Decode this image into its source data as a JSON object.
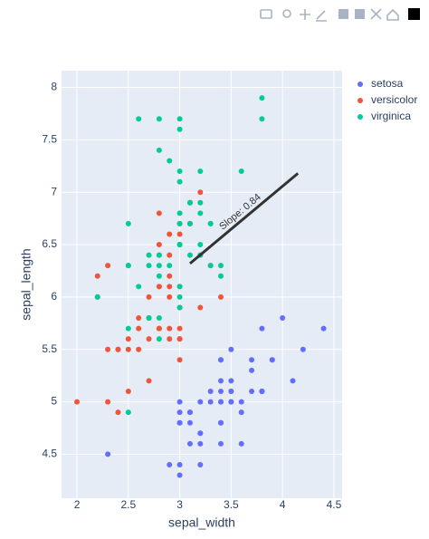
{
  "chart_data": {
    "type": "scatter",
    "x_label": "sepal_width",
    "y_label": "sepal_length",
    "xlim": [
      1.85,
      4.58
    ],
    "ylim": [
      4.08,
      8.16
    ],
    "xticks": [
      2,
      2.5,
      3,
      3.5,
      4,
      4.5
    ],
    "yticks": [
      4.5,
      5,
      5.5,
      6,
      6.5,
      7,
      7.5,
      8
    ],
    "grid": true,
    "legend": "right",
    "series": [
      {
        "name": "setosa",
        "color": "#636efa",
        "x": [
          3.5,
          3,
          3.2,
          3.1,
          3.6,
          3.9,
          3.4,
          3.4,
          2.9,
          3.1,
          3.7,
          3.4,
          3,
          3,
          4,
          4.4,
          3.9,
          3.5,
          3.8,
          3.8,
          3.4,
          3.7,
          3.6,
          3.3,
          3.4,
          3,
          3.4,
          3.5,
          3.4,
          3.2,
          3.1,
          3.4,
          4.1,
          4.2,
          3.1,
          3.2,
          3.5,
          3.6,
          3,
          3.4,
          3.5,
          2.3,
          3.2,
          3.5,
          3.8,
          3,
          3.8,
          3.2,
          3.7,
          3.3
        ],
        "values": [
          5.1,
          4.9,
          4.7,
          4.6,
          5,
          5.4,
          4.6,
          5,
          4.4,
          4.9,
          5.4,
          4.8,
          4.8,
          4.3,
          5.8,
          5.7,
          5.4,
          5.1,
          5.7,
          5.1,
          5.4,
          5.1,
          4.6,
          5.1,
          4.8,
          5,
          5,
          5.2,
          5.2,
          4.7,
          4.8,
          5.4,
          5.2,
          5.5,
          4.9,
          5,
          5.5,
          4.9,
          4.4,
          5.1,
          5,
          4.5,
          4.4,
          5,
          5.1,
          4.8,
          5.1,
          4.6,
          5.3,
          5
        ]
      },
      {
        "name": "versicolor",
        "color": "#ef553b",
        "x": [
          3.2,
          3.2,
          3.1,
          2.3,
          2.8,
          2.8,
          3.3,
          2.4,
          2.9,
          2.7,
          2,
          3,
          2.2,
          2.9,
          2.9,
          3.1,
          3,
          2.7,
          2.2,
          2.5,
          3.2,
          2.8,
          2.5,
          2.8,
          2.9,
          3,
          2.8,
          3,
          2.9,
          2.6,
          2.4,
          2.4,
          2.7,
          2.7,
          3,
          3.4,
          3.1,
          2.3,
          3,
          2.5,
          2.6,
          3,
          2.6,
          2.3,
          2.7,
          3,
          2.9,
          2.9,
          2.5,
          2.8
        ],
        "values": [
          7,
          6.4,
          6.9,
          5.5,
          6.5,
          5.7,
          6.3,
          4.9,
          6.6,
          5.2,
          5,
          5.9,
          6,
          6.1,
          5.6,
          6.7,
          5.6,
          5.8,
          6.2,
          5.6,
          5.9,
          6.1,
          6.3,
          6.1,
          6.4,
          6.6,
          6.8,
          6.7,
          6,
          5.7,
          5.5,
          5.5,
          5.8,
          6,
          5.4,
          6,
          6.7,
          6.3,
          5.6,
          5.5,
          5.5,
          6.1,
          5.8,
          5,
          5.6,
          5.7,
          5.7,
          6.2,
          5.1,
          5.7
        ]
      },
      {
        "name": "virginica",
        "color": "#00cc96",
        "x": [
          3.3,
          2.7,
          3,
          2.9,
          3,
          3,
          2.5,
          2.9,
          2.5,
          3.6,
          3.2,
          2.7,
          3,
          2.5,
          2.8,
          3.2,
          3,
          3.8,
          2.6,
          2.2,
          3.2,
          2.8,
          2.8,
          2.7,
          3.3,
          3.2,
          2.8,
          3,
          2.8,
          3,
          2.8,
          3.8,
          2.8,
          2.8,
          2.6,
          3,
          3.4,
          3.1,
          3,
          3.1,
          3.1,
          3.1,
          2.7,
          3.2,
          3.3,
          3,
          2.5,
          3,
          3.4,
          3
        ],
        "values": [
          6.3,
          5.8,
          7.1,
          6.3,
          6.5,
          7.6,
          4.9,
          7.3,
          6.7,
          7.2,
          6.5,
          6.4,
          6.8,
          5.7,
          5.8,
          6.4,
          6.5,
          7.7,
          7.7,
          6,
          6.9,
          5.6,
          7.7,
          6.3,
          6.7,
          7.2,
          6.2,
          6.1,
          6.4,
          7.2,
          7.4,
          7.9,
          6.4,
          6.3,
          6.1,
          7.7,
          6.3,
          6.4,
          6,
          6.9,
          6.7,
          6.9,
          5.8,
          6.8,
          6.7,
          6.7,
          6.3,
          6.5,
          6.2,
          5.9
        ]
      }
    ],
    "annotation": {
      "text": "Slope: 0.84",
      "color": "#333333",
      "x": [
        3.1,
        4.15
      ],
      "y": [
        6.32,
        7.18
      ]
    }
  }
}
